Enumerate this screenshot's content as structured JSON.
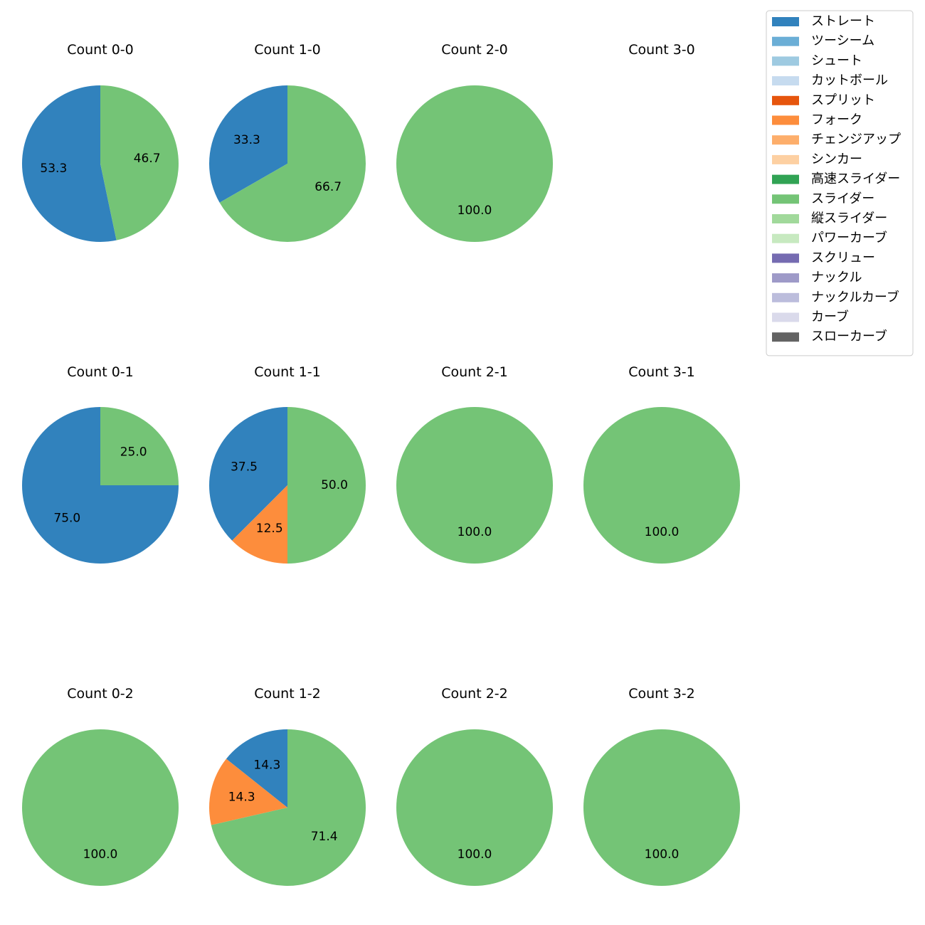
{
  "chart_data": {
    "type": "pie",
    "legend": {
      "placement": "top-right",
      "entries": [
        {
          "name": "ストレート",
          "color": "#3182bd"
        },
        {
          "name": "ツーシーム",
          "color": "#6baed6"
        },
        {
          "name": "シュート",
          "color": "#9ecae1"
        },
        {
          "name": "カットボール",
          "color": "#c6dbef"
        },
        {
          "name": "スプリット",
          "color": "#e6550d"
        },
        {
          "name": "フォーク",
          "color": "#fd8d3c"
        },
        {
          "name": "チェンジアップ",
          "color": "#fdae6b"
        },
        {
          "name": "シンカー",
          "color": "#fdd0a2"
        },
        {
          "name": "高速スライダー",
          "color": "#31a354"
        },
        {
          "name": "スライダー",
          "color": "#74c476"
        },
        {
          "name": "縦スライダー",
          "color": "#a1d99b"
        },
        {
          "name": "パワーカーブ",
          "color": "#c7e9c0"
        },
        {
          "name": "スクリュー",
          "color": "#756bb1"
        },
        {
          "name": "ナックル",
          "color": "#9e9ac8"
        },
        {
          "name": "ナックルカーブ",
          "color": "#bcbddc"
        },
        {
          "name": "カーブ",
          "color": "#dadaeb"
        },
        {
          "name": "スローカーブ",
          "color": "#636363"
        }
      ]
    },
    "panels": [
      {
        "title": "Count 0-0",
        "slices": [
          {
            "name": "ストレート",
            "value": 53.3,
            "label": "53.3"
          },
          {
            "name": "スライダー",
            "value": 46.7,
            "label": "46.7"
          }
        ]
      },
      {
        "title": "Count 1-0",
        "slices": [
          {
            "name": "ストレート",
            "value": 33.3,
            "label": "33.3"
          },
          {
            "name": "スライダー",
            "value": 66.7,
            "label": "66.7"
          }
        ]
      },
      {
        "title": "Count 2-0",
        "slices": [
          {
            "name": "スライダー",
            "value": 100.0,
            "label": "100.0"
          }
        ]
      },
      {
        "title": "Count 3-0",
        "slices": []
      },
      {
        "title": "Count 0-1",
        "slices": [
          {
            "name": "ストレート",
            "value": 75.0,
            "label": "75.0"
          },
          {
            "name": "スライダー",
            "value": 25.0,
            "label": "25.0"
          }
        ]
      },
      {
        "title": "Count 1-1",
        "slices": [
          {
            "name": "ストレート",
            "value": 37.5,
            "label": "37.5"
          },
          {
            "name": "フォーク",
            "value": 12.5,
            "label": "12.5"
          },
          {
            "name": "スライダー",
            "value": 50.0,
            "label": "50.0"
          }
        ]
      },
      {
        "title": "Count 2-1",
        "slices": [
          {
            "name": "スライダー",
            "value": 100.0,
            "label": "100.0"
          }
        ]
      },
      {
        "title": "Count 3-1",
        "slices": [
          {
            "name": "スライダー",
            "value": 100.0,
            "label": "100.0"
          }
        ]
      },
      {
        "title": "Count 0-2",
        "slices": [
          {
            "name": "スライダー",
            "value": 100.0,
            "label": "100.0"
          }
        ]
      },
      {
        "title": "Count 1-2",
        "slices": [
          {
            "name": "ストレート",
            "value": 14.3,
            "label": "14.3"
          },
          {
            "name": "フォーク",
            "value": 14.3,
            "label": "14.3"
          },
          {
            "name": "スライダー",
            "value": 71.4,
            "label": "71.4"
          }
        ]
      },
      {
        "title": "Count 2-2",
        "slices": [
          {
            "name": "スライダー",
            "value": 100.0,
            "label": "100.0"
          }
        ]
      },
      {
        "title": "Count 3-2",
        "slices": [
          {
            "name": "スライダー",
            "value": 100.0,
            "label": "100.0"
          }
        ]
      }
    ]
  }
}
